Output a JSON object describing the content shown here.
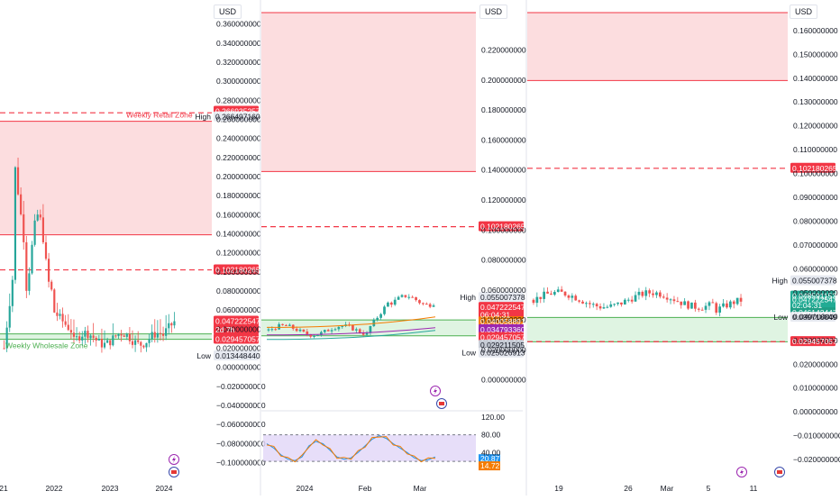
{
  "currency": "USD",
  "colors": {
    "up": "#26a69a",
    "down": "#ef5350",
    "zone_red": "#fbd7d9",
    "zone_red_line": "#f23645",
    "zone_green": "#d9f2dd",
    "zone_green_line": "#4caf50",
    "axis_text": "#131722",
    "label_red": "#f23645",
    "label_green": "#22ab94",
    "label_gray": "#e6e9f0",
    "rsi_band": "#e1d6f7",
    "rsi_line": "#7e57c2"
  },
  "chart_data": [
    {
      "type": "candlestick",
      "timeframe_panel": "left",
      "x_ticks": [
        "21",
        "2022",
        "2023",
        "2024"
      ],
      "y_ticks": [
        "0.360000000",
        "0.340000000",
        "0.320000000",
        "0.300000000",
        "0.280000000",
        "0.260000000",
        "0.240000000",
        "0.220000000",
        "0.200000000",
        "0.180000000",
        "0.160000000",
        "0.140000000",
        "0.120000000",
        "0.100000000",
        "0.080000000",
        "0.060000000",
        "0.040000000",
        "0.020000000",
        "0.000000000",
        "−0.020000000",
        "−0.040000000",
        "−0.060000000",
        "−0.080000000",
        "−0.100000000"
      ],
      "ylim": [
        -0.108,
        0.372
      ],
      "zones": [
        {
          "label": "Weekly Retail Zone",
          "top": 0.258,
          "bottom": 0.139,
          "kind": "supply"
        },
        {
          "label": "Weekly Wholesale Zone",
          "top": 0.035,
          "bottom": 0.0294,
          "kind": "demand"
        }
      ],
      "dashed_levels": [
        0.266935257,
        0.102180265
      ],
      "price_labels": [
        {
          "text": "0.266935257",
          "kind": "red",
          "y": 0.2685
        },
        {
          "text": "High",
          "kind": "plain",
          "y": 0.2627
        },
        {
          "text": "0.266497160",
          "kind": "gray",
          "y": 0.2627
        },
        {
          "text": "0.102180265",
          "kind": "red",
          "y": 0.1022
        },
        {
          "text": "0.047222547",
          "kind": "red",
          "y": 0.0484
        },
        {
          "text": "2d 7h",
          "kind": "red",
          "y": 0.0392
        },
        {
          "text": "0.029457057",
          "kind": "red",
          "y": 0.0295
        },
        {
          "text": "Low",
          "kind": "plain",
          "y": 0.012
        },
        {
          "text": "0.013448440",
          "kind": "gray",
          "y": 0.012
        }
      ]
    },
    {
      "type": "candlestick",
      "timeframe_panel": "middle",
      "x_ticks": [
        "2024",
        "Feb",
        "Mar"
      ],
      "y_ticks": [
        "0.220000000",
        "0.200000000",
        "0.180000000",
        "0.160000000",
        "0.140000000",
        "0.120000000",
        "0.100000000",
        "0.080000000",
        "0.060000000",
        "0.040000000",
        "0.020000000",
        "0.000000000"
      ],
      "ylim": [
        -0.005,
        0.245
      ],
      "zones": [
        {
          "label": "",
          "top": 0.245,
          "bottom": 0.139,
          "kind": "supply"
        },
        {
          "label": "",
          "top": 0.04,
          "bottom": 0.0294,
          "kind": "demand"
        }
      ],
      "dashed_levels": [
        0.102180265
      ],
      "price_labels": [
        {
          "text": "0.102180265",
          "kind": "red",
          "y": 0.1022
        },
        {
          "text": "0.060000000",
          "kind": "plain",
          "y": 0.06
        },
        {
          "text": "High",
          "kind": "plain",
          "y": 0.055
        },
        {
          "text": "0.055007378",
          "kind": "gray",
          "y": 0.055
        },
        {
          "text": "0.047222547",
          "kind": "red",
          "y": 0.0484
        },
        {
          "text": "06:04:31",
          "kind": "red",
          "y": 0.0434
        },
        {
          "text": "0.040058891",
          "kind": "orange",
          "y": 0.0388
        },
        {
          "text": "0.034793360",
          "kind": "purple",
          "y": 0.0336
        },
        {
          "text": "0.029457057",
          "kind": "red",
          "y": 0.0284
        },
        {
          "text": "0.029211505",
          "kind": "gray2",
          "y": 0.0232
        },
        {
          "text": "Low",
          "kind": "plain",
          "y": 0.018
        },
        {
          "text": "0.025026913",
          "kind": "gray",
          "y": 0.018
        }
      ],
      "rsi": {
        "ticks": [
          "120.00",
          "80.00",
          "40.00"
        ],
        "value": "20.87",
        "value2": "14.72"
      }
    },
    {
      "type": "candlestick",
      "timeframe_panel": "right",
      "x_ticks": [
        "19",
        "26",
        "Mar",
        "5",
        "11"
      ],
      "y_ticks": [
        "0.160000000",
        "0.150000000",
        "0.140000000",
        "0.130000000",
        "0.120000000",
        "0.110000000",
        "0.100000000",
        "0.090000000",
        "0.080000000",
        "0.070000000",
        "0.060000000",
        "0.050000000",
        "0.040000000",
        "0.030000000",
        "0.020000000",
        "0.010000000",
        "0.000000000",
        "−0.010000000",
        "−0.020000000"
      ],
      "ylim": [
        -0.0245,
        0.1675
      ],
      "zones": [
        {
          "label": "",
          "top": 0.1675,
          "bottom": 0.139,
          "kind": "supply"
        },
        {
          "label": "",
          "top": 0.0396,
          "bottom": 0.0294,
          "kind": "demand"
        }
      ],
      "dashed_levels": [
        0.102180265,
        0.029457057
      ],
      "price_labels": [
        {
          "text": "0.102180265",
          "kind": "red",
          "y": 0.1022
        },
        {
          "text": "High",
          "kind": "plain",
          "y": 0.055
        },
        {
          "text": "0.055007378",
          "kind": "gray",
          "y": 0.055
        },
        {
          "text": "0.048591153",
          "kind": "green",
          "y": 0.0486
        },
        {
          "text": "0.047222547",
          "kind": "green",
          "y": 0.0472
        },
        {
          "text": "02:04:31",
          "kind": "green",
          "y": 0.0446
        },
        {
          "text": "0.046142447",
          "kind": "green2",
          "y": 0.0416
        },
        {
          "text": "Low",
          "kind": "plain",
          "y": 0.0397
        },
        {
          "text": "0.039718849",
          "kind": "gray",
          "y": 0.0397
        },
        {
          "text": "0.029457057",
          "kind": "red",
          "y": 0.0295
        }
      ]
    }
  ]
}
